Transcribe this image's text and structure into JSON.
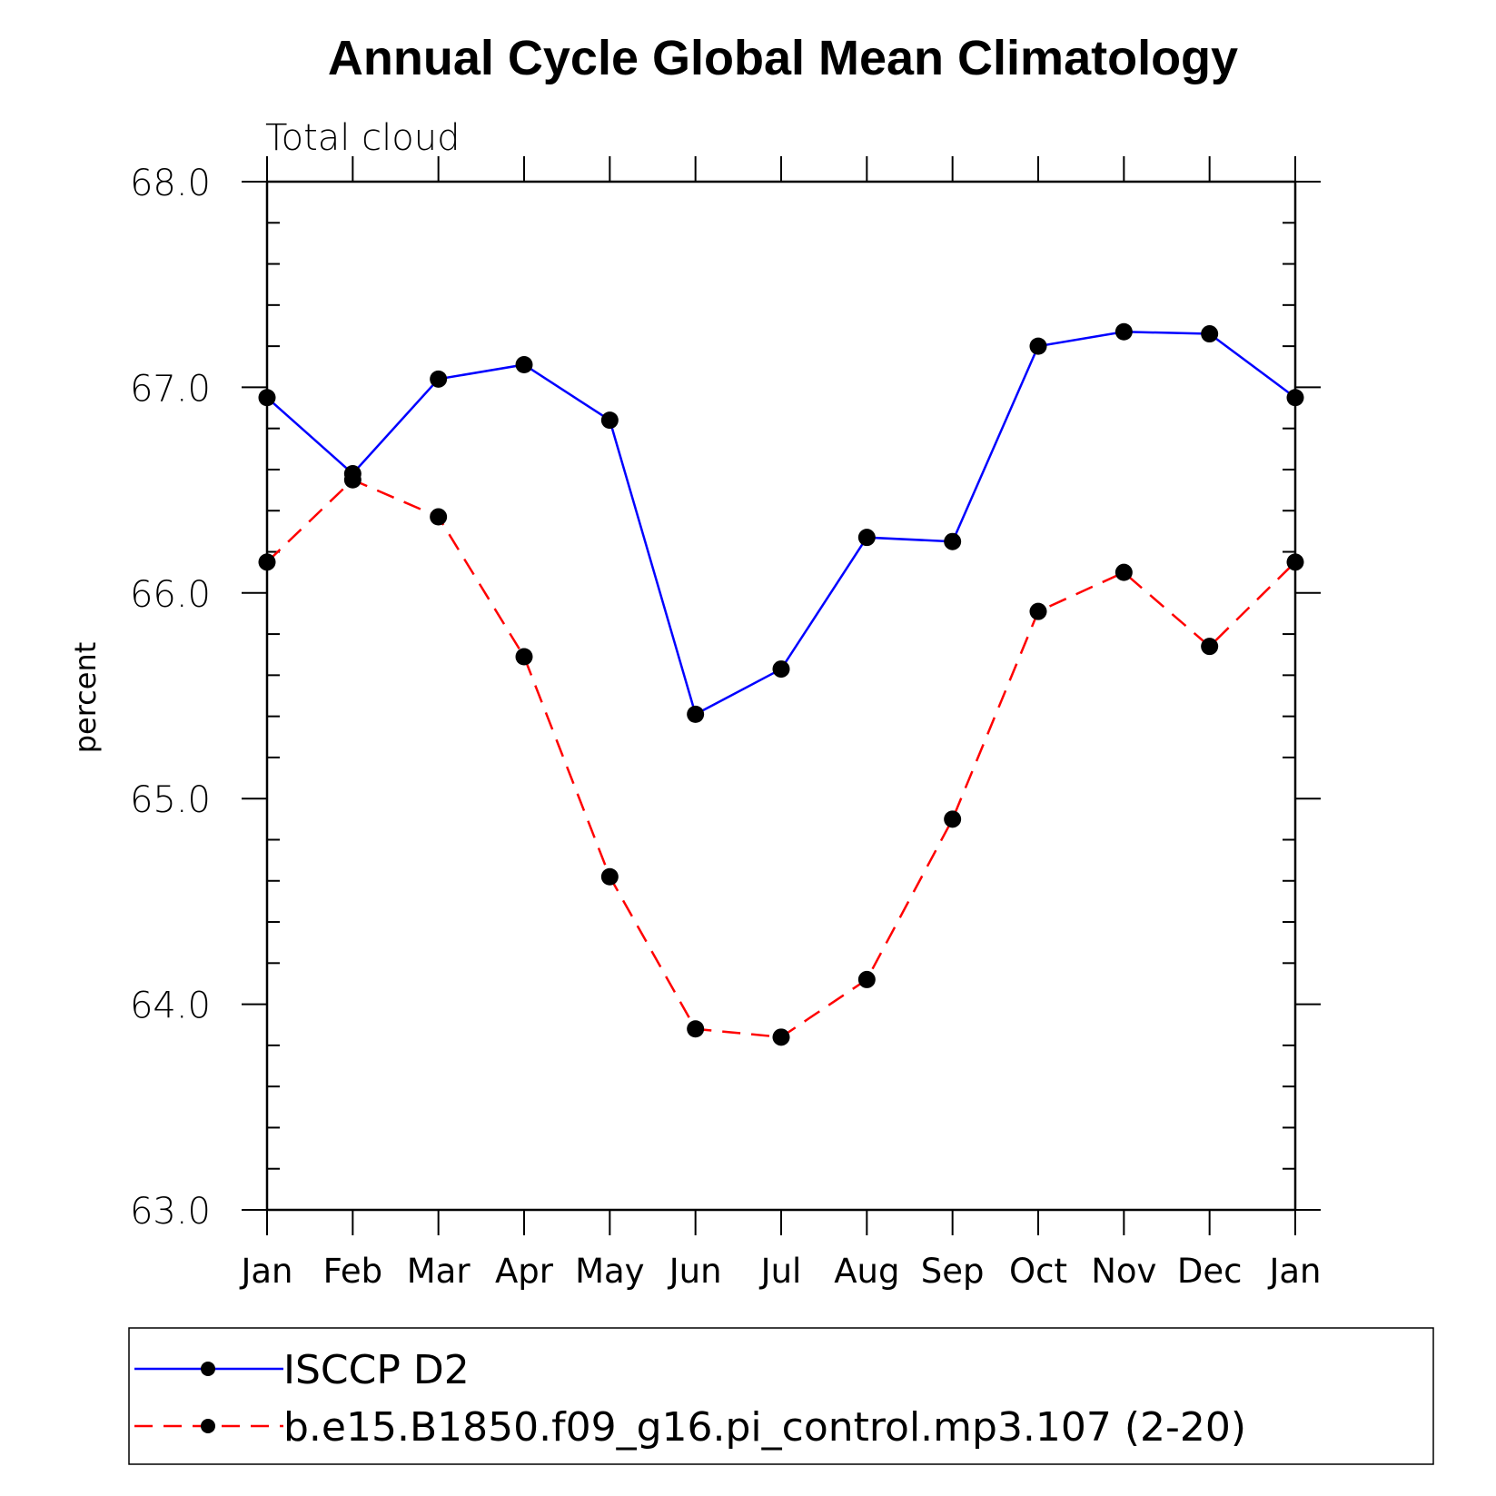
{
  "chart_data": {
    "type": "line",
    "title": "Annual Cycle Global Mean Climatology",
    "subtitle": "Total cloud",
    "xlabel": "",
    "ylabel": "percent",
    "categories": [
      "Jan",
      "Feb",
      "Mar",
      "Apr",
      "May",
      "Jun",
      "Jul",
      "Aug",
      "Sep",
      "Oct",
      "Nov",
      "Dec",
      "Jan"
    ],
    "ylim": [
      63.0,
      68.0
    ],
    "yticks": [
      "63.0",
      "64.0",
      "65.0",
      "66.0",
      "67.0",
      "68.0"
    ],
    "grid": false,
    "legend_position": "bottom",
    "series": [
      {
        "name": "ISCCP D2",
        "color": "#0000ff",
        "dash": "solid",
        "values": [
          66.95,
          66.58,
          67.04,
          67.11,
          66.84,
          65.41,
          65.63,
          66.27,
          66.25,
          67.2,
          67.27,
          67.26,
          66.95
        ]
      },
      {
        "name": "b.e15.B1850.f09_g16.pi_control.mp3.107 (2-20)",
        "color": "#ff0000",
        "dash": "dashed",
        "values": [
          66.15,
          66.55,
          66.37,
          65.69,
          64.62,
          63.88,
          63.84,
          64.12,
          64.9,
          65.91,
          66.1,
          65.74,
          66.15
        ]
      }
    ]
  }
}
